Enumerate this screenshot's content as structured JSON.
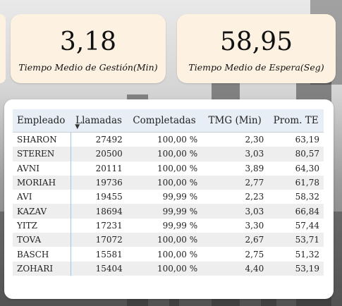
{
  "kpis": {
    "tmg": {
      "value": "3,18",
      "label": "Tiempo Medio de Gestión(Min)"
    },
    "tme": {
      "value": "58,95",
      "label": "Tiempo Medio de Espera(Seg)"
    }
  },
  "table": {
    "headers": [
      "Empleado",
      "Llamadas",
      "Completadas",
      "TMG (Min)",
      "Prom. TE"
    ],
    "sort_icon": "sort-desc-icon",
    "rows": [
      [
        "SHARON",
        "27492",
        "100,00 %",
        "2,30",
        "63,19"
      ],
      [
        "STEREN",
        "20500",
        "100,00 %",
        "3,03",
        "80,57"
      ],
      [
        "AVNI",
        "20111",
        "100,00 %",
        "3,89",
        "64,30"
      ],
      [
        "MORIAH",
        "19736",
        "100,00 %",
        "2,77",
        "61,78"
      ],
      [
        "AVI",
        "19455",
        "99,99 %",
        "2,23",
        "58,32"
      ],
      [
        "KAZAV",
        "18694",
        "99,99 %",
        "3,03",
        "66,84"
      ],
      [
        "YITZ",
        "17231",
        "99,99 %",
        "3,30",
        "57,44"
      ],
      [
        "TOVA",
        "17072",
        "100,00 %",
        "2,67",
        "53,71"
      ],
      [
        "BASCH",
        "15581",
        "100,00 %",
        "2,75",
        "51,32"
      ],
      [
        "ZOHARI",
        "15404",
        "100,00 %",
        "4,40",
        "53,19"
      ]
    ]
  },
  "colors": {
    "kpi_background": "#fdf1e1",
    "header_background": "#e8eef6",
    "row_alt_background": "#eeeeee",
    "name_divider": "#9cc7e8"
  }
}
